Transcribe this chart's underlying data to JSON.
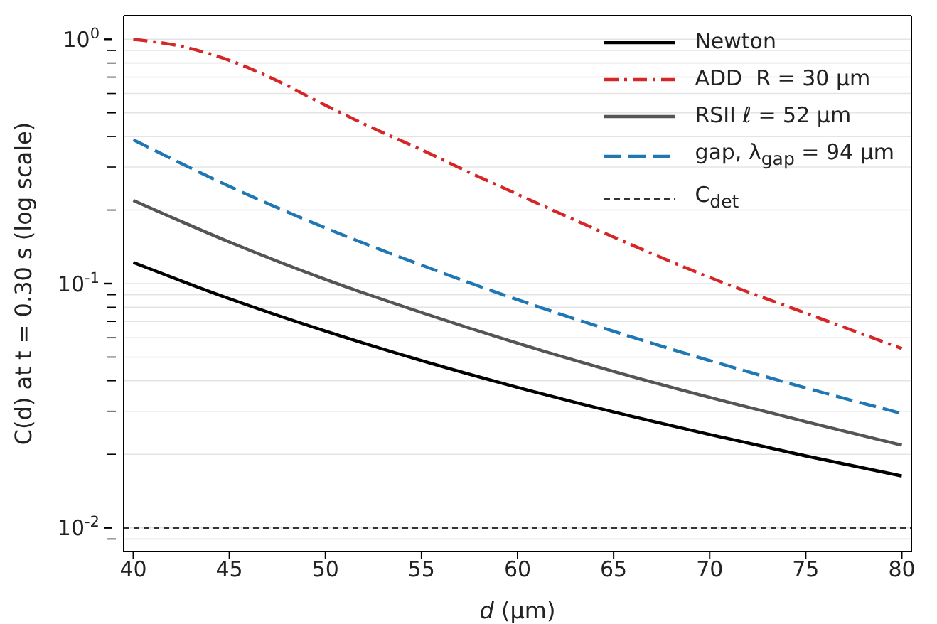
{
  "chart_data": {
    "type": "line",
    "xlabel": "d (μm)",
    "ylabel": "C(d) at t = 0.30 s (log scale)",
    "log": "y",
    "grid": "y",
    "legend": "top right",
    "marker": "none",
    "xlim": [
      39.5,
      80.5
    ],
    "xticks": [
      40,
      45,
      50,
      55,
      60,
      65,
      70,
      75,
      80
    ],
    "ylim": [
      0.008,
      1.25
    ],
    "yticks": [
      {
        "value": 0.009,
        "label": null
      },
      {
        "value": 0.01,
        "label": "10$^{-2}$"
      },
      {
        "value": 0.02,
        "label": null
      },
      {
        "value": 0.03,
        "label": null
      },
      {
        "value": 0.04,
        "label": null
      },
      {
        "value": 0.05,
        "label": null
      },
      {
        "value": 0.06,
        "label": null
      },
      {
        "value": 0.07,
        "label": null
      },
      {
        "value": 0.08,
        "label": null
      },
      {
        "value": 0.09,
        "label": null
      },
      {
        "value": 0.1,
        "label": "10$^{-1}$"
      },
      {
        "value": 0.2,
        "label": null
      },
      {
        "value": 0.3,
        "label": null
      },
      {
        "value": 0.4,
        "label": null
      },
      {
        "value": 0.5,
        "label": null
      },
      {
        "value": 0.6,
        "label": null
      },
      {
        "value": 0.7,
        "label": null
      },
      {
        "value": 0.8,
        "label": null
      },
      {
        "value": 0.9,
        "label": null
      },
      {
        "value": 1,
        "label": "10$^{0}$"
      }
    ],
    "series": [
      {
        "name": "Newton",
        "color": "#000000",
        "line_style": "solid",
        "x": [
          40,
          45,
          50,
          55,
          60,
          65,
          70,
          75,
          80
        ],
        "values": [
          0.122,
          0.0867,
          0.0639,
          0.0484,
          0.0376,
          0.0298,
          0.0241,
          0.0197,
          0.0163
        ]
      },
      {
        "name": "ADD  R = 30 μm",
        "color": "#d62728",
        "line_style": "dashdot",
        "x": [
          40,
          42.5,
          45,
          47.5,
          50,
          52.5,
          55,
          57.5,
          60,
          65,
          70,
          75,
          80
        ],
        "values": [
          1.0,
          0.935,
          0.82,
          0.676,
          0.537,
          0.432,
          0.353,
          0.285,
          0.232,
          0.155,
          0.106,
          0.0757,
          0.0542
        ]
      },
      {
        "name": "RSII ℓ = 52 μm",
        "color": "#555555",
        "line_style": "solid",
        "x": [
          40,
          45,
          50,
          55,
          60,
          65,
          70,
          75,
          80
        ],
        "values": [
          0.219,
          0.148,
          0.104,
          0.0761,
          0.057,
          0.0437,
          0.0342,
          0.0272,
          0.0218
        ]
      },
      {
        "name": "gap, λ$_{gap}$ = 94 μm",
        "color": "#1f77b4",
        "line_style": "dashed",
        "x": [
          40,
          45,
          50,
          55,
          60,
          65,
          70,
          75,
          80
        ],
        "values": [
          0.388,
          0.25,
          0.169,
          0.119,
          0.0859,
          0.0638,
          0.0484,
          0.0374,
          0.0294
        ]
      }
    ],
    "ref_lines": [
      {
        "axis": "y",
        "value": 0.01,
        "label": "C$_{det}$",
        "color": "#333333",
        "line_style": "dotted"
      }
    ]
  }
}
